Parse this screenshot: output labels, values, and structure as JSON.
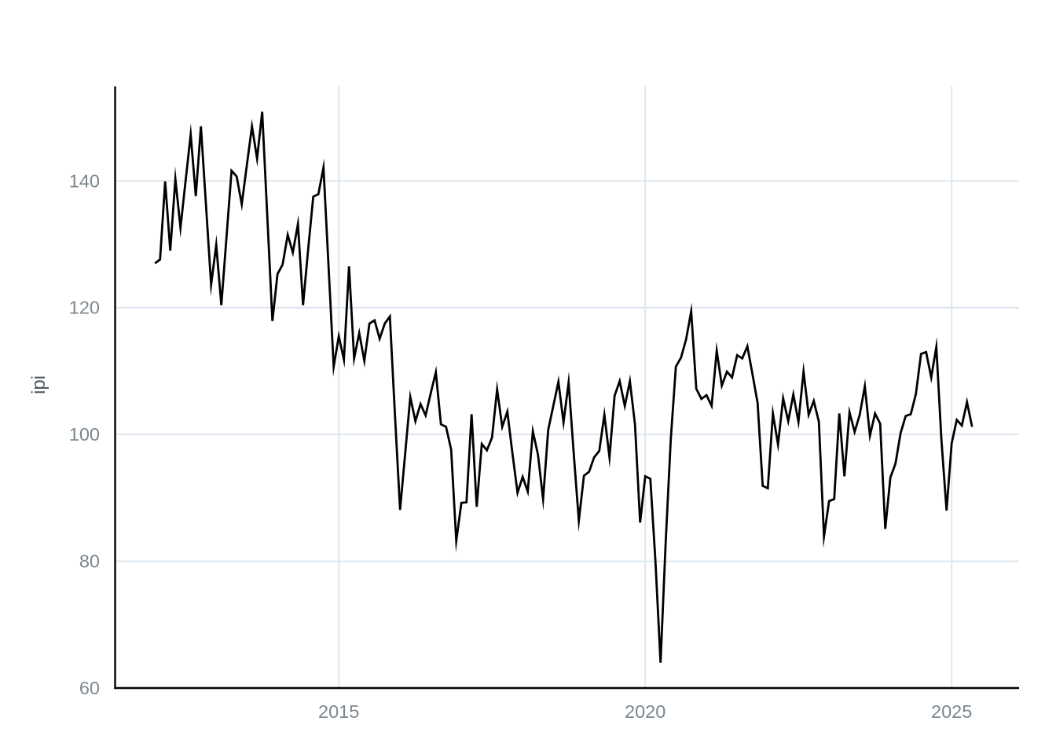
{
  "chart_data": {
    "type": "line",
    "title": "",
    "xlabel": "",
    "ylabel": "ipi",
    "series_name": "ipi",
    "frequency": "monthly",
    "start": "2012-01",
    "end": "2025-05",
    "legend": "none",
    "grid": true,
    "x_ticks": [
      2015,
      2020,
      2025
    ],
    "x_tick_labels": [
      "2015",
      "2020",
      "2025"
    ],
    "y_ticks": [
      60,
      80,
      100,
      120,
      140
    ],
    "y_tick_labels": [
      "60",
      "80",
      "100",
      "120",
      "140"
    ],
    "xlim": [
      2011.35,
      2026.1
    ],
    "ylim": [
      60,
      154.9
    ],
    "values": [
      127.0,
      127.6,
      139.9,
      129.0,
      140.3,
      132.6,
      140.0,
      147.3,
      137.6,
      148.6,
      136.1,
      123.6,
      129.9,
      120.4,
      131.0,
      141.6,
      140.7,
      136.3,
      142.5,
      148.6,
      143.5,
      150.9,
      134.4,
      117.9,
      125.3,
      126.8,
      131.5,
      128.7,
      133.2,
      120.4,
      129.2,
      137.5,
      137.9,
      142.1,
      126.4,
      110.7,
      115.5,
      111.8,
      126.5,
      112.0,
      116.0,
      111.6,
      117.5,
      118.0,
      115.1,
      117.5,
      118.6,
      103.0,
      88.1,
      97.0,
      105.9,
      102.1,
      104.8,
      103.0,
      106.5,
      109.8,
      101.6,
      101.2,
      97.6,
      83.2,
      89.2,
      89.3,
      103.2,
      88.6,
      98.5,
      97.5,
      99.5,
      107.1,
      101.2,
      103.6,
      97.0,
      90.8,
      93.3,
      91.0,
      100.5,
      96.8,
      89.8,
      100.7,
      104.5,
      108.3,
      101.9,
      108.2,
      97.0,
      86.4,
      93.5,
      94.1,
      96.4,
      97.4,
      103.1,
      96.4,
      106.1,
      108.4,
      104.5,
      108.4,
      101.5,
      86.1,
      93.4,
      93.0,
      80.0,
      64.0,
      82.9,
      99.2,
      110.7,
      112.1,
      115.0,
      119.4,
      107.2,
      105.6,
      106.2,
      104.5,
      113.2,
      107.7,
      109.9,
      109.0,
      112.5,
      112.0,
      113.9,
      109.5,
      105.0,
      91.9,
      91.5,
      103.3,
      98.4,
      105.7,
      102.1,
      106.3,
      102.0,
      109.9,
      103.1,
      105.3,
      102.0,
      83.9,
      89.5,
      89.8,
      103.3,
      93.4,
      103.5,
      100.4,
      103.1,
      107.6,
      99.8,
      103.3,
      101.7,
      85.1,
      93.2,
      95.4,
      100.2,
      102.9,
      103.2,
      106.4,
      112.7,
      113.0,
      109.0,
      113.8,
      99.1,
      88.0,
      98.6,
      102.3,
      101.4,
      105.1,
      101.2
    ],
    "colors": {
      "line": "#000000",
      "axis": "#000000",
      "gridline": "#dde6ef",
      "tick_label": "#7b878f",
      "axis_title": "#4e5b63",
      "background": "#ffffff"
    }
  }
}
